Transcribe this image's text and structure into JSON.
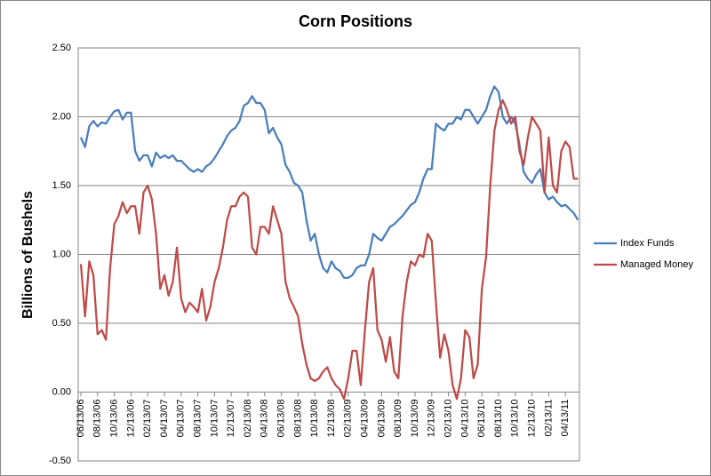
{
  "chart_data": {
    "type": "line",
    "title": "Corn Positions",
    "y_label": "Billions of Bushels",
    "categories": [
      "06/13/06",
      null,
      null,
      null,
      "08/13/06",
      null,
      null,
      null,
      "10/13/06",
      null,
      null,
      null,
      "12/13/06",
      null,
      null,
      null,
      "02/13/07",
      null,
      null,
      null,
      "04/13/07",
      null,
      null,
      null,
      "06/13/07",
      null,
      null,
      null,
      "08/13/07",
      null,
      null,
      null,
      "10/13/07",
      null,
      null,
      null,
      "12/13/07",
      null,
      null,
      null,
      "02/13/08",
      null,
      null,
      null,
      "04/13/08",
      null,
      null,
      null,
      "06/13/08",
      null,
      null,
      null,
      "08/13/08",
      null,
      null,
      null,
      "10/13/08",
      null,
      null,
      null,
      "12/13/08",
      null,
      null,
      null,
      "02/13/09",
      null,
      null,
      null,
      "04/13/09",
      null,
      null,
      null,
      "06/13/09",
      null,
      null,
      null,
      "08/13/09",
      null,
      null,
      null,
      "10/13/09",
      null,
      null,
      null,
      "12/13/09",
      null,
      null,
      null,
      "02/13/10",
      null,
      null,
      null,
      "04/13/10",
      null,
      null,
      null,
      "06/13/10",
      null,
      null,
      null,
      "08/13/10",
      null,
      null,
      null,
      "10/13/10",
      null,
      null,
      null,
      "12/13/10",
      null,
      null,
      null,
      "02/13/11",
      null,
      null,
      null,
      "04/13/11",
      null,
      null,
      null
    ],
    "series": [
      {
        "name": "Index Funds",
        "color": "#4a7ebb",
        "values": [
          1.85,
          1.78,
          1.93,
          1.97,
          1.93,
          1.96,
          1.95,
          2.0,
          2.04,
          2.05,
          1.98,
          2.03,
          2.03,
          1.75,
          1.68,
          1.72,
          1.72,
          1.64,
          1.74,
          1.7,
          1.72,
          1.7,
          1.72,
          1.68,
          1.68,
          1.65,
          1.62,
          1.6,
          1.62,
          1.6,
          1.64,
          1.66,
          1.7,
          1.75,
          1.8,
          1.86,
          1.9,
          1.92,
          1.97,
          2.08,
          2.1,
          2.15,
          2.1,
          2.1,
          2.05,
          1.88,
          1.92,
          1.85,
          1.8,
          1.65,
          1.6,
          1.52,
          1.5,
          1.45,
          1.25,
          1.1,
          1.15,
          1.0,
          0.9,
          0.87,
          0.95,
          0.9,
          0.88,
          0.83,
          0.83,
          0.85,
          0.9,
          0.92,
          0.92,
          1.0,
          1.15,
          1.12,
          1.1,
          1.15,
          1.2,
          1.22,
          1.25,
          1.28,
          1.32,
          1.36,
          1.38,
          1.45,
          1.55,
          1.62,
          1.62,
          1.95,
          1.92,
          1.9,
          1.95,
          1.95,
          2.0,
          1.98,
          2.05,
          2.05,
          2.0,
          1.95,
          2.0,
          2.05,
          2.15,
          2.22,
          2.18,
          2.0,
          1.95,
          2.0,
          1.95,
          1.8,
          1.6,
          1.55,
          1.52,
          1.58,
          1.62,
          1.45,
          1.4,
          1.42,
          1.38,
          1.35,
          1.36,
          1.33,
          1.3,
          1.25
        ]
      },
      {
        "name": "Managed Money",
        "color": "#be4b48",
        "values": [
          0.93,
          0.55,
          0.95,
          0.85,
          0.42,
          0.45,
          0.38,
          0.9,
          1.22,
          1.28,
          1.38,
          1.3,
          1.35,
          1.35,
          1.15,
          1.45,
          1.5,
          1.4,
          1.15,
          0.75,
          0.85,
          0.7,
          0.8,
          1.05,
          0.68,
          0.58,
          0.65,
          0.62,
          0.58,
          0.75,
          0.52,
          0.62,
          0.8,
          0.9,
          1.05,
          1.25,
          1.35,
          1.35,
          1.42,
          1.45,
          1.42,
          1.05,
          1.0,
          1.2,
          1.2,
          1.15,
          1.35,
          1.25,
          1.15,
          0.8,
          0.68,
          0.62,
          0.55,
          0.35,
          0.2,
          0.1,
          0.08,
          0.1,
          0.15,
          0.18,
          0.1,
          0.05,
          0.02,
          -0.05,
          0.1,
          0.3,
          0.3,
          0.05,
          0.45,
          0.8,
          0.9,
          0.45,
          0.38,
          0.22,
          0.4,
          0.15,
          0.1,
          0.55,
          0.8,
          0.95,
          0.92,
          1.0,
          0.98,
          1.15,
          1.1,
          0.65,
          0.25,
          0.42,
          0.3,
          0.05,
          -0.05,
          0.1,
          0.45,
          0.4,
          0.1,
          0.2,
          0.75,
          0.98,
          1.5,
          1.9,
          2.05,
          2.12,
          2.05,
          1.95,
          2.0,
          1.75,
          1.65,
          1.85,
          2.0,
          1.95,
          1.9,
          1.45,
          1.85,
          1.5,
          1.45,
          1.75,
          1.82,
          1.78,
          1.55,
          1.55
        ]
      }
    ],
    "ylim": [
      -0.5,
      2.5
    ],
    "yticks": [
      {
        "value": -0.5,
        "label": "-0.50"
      },
      {
        "value": 0,
        "label": "0.00"
      },
      {
        "value": 0.5,
        "label": "0.50"
      },
      {
        "value": 1,
        "label": "1.00"
      },
      {
        "value": 1.5,
        "label": "1.50"
      },
      {
        "value": 2,
        "label": "2.00"
      },
      {
        "value": 2.5,
        "label": "2.50"
      }
    ],
    "grid": true,
    "legend": "right"
  }
}
